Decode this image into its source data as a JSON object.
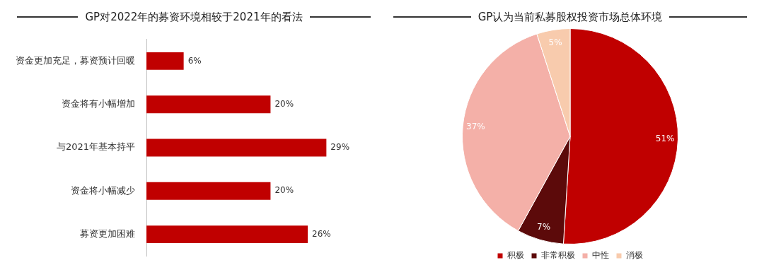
{
  "chart_data": [
    {
      "type": "bar",
      "title": "GP对2022年的募资环境相较于2021年的看法",
      "orientation": "horizontal",
      "categories": [
        "资金更加充足，募资预计回暖",
        "资金将有小幅增加",
        "与2021年基本持平",
        "资金将小幅减少",
        "募资更加困难"
      ],
      "values": [
        6,
        20,
        29,
        20,
        26
      ],
      "value_labels": [
        "6%",
        "20%",
        "29%",
        "20%",
        "26%"
      ],
      "color": "#c00000",
      "legend": false
    },
    {
      "type": "pie",
      "title": "GP认为当前私募股权投资市场总体环境",
      "categories": [
        "积极",
        "非常积极",
        "中性",
        "消极"
      ],
      "values": [
        51,
        7,
        37,
        5
      ],
      "value_labels": [
        "51%",
        "7%",
        "37%",
        "5%"
      ],
      "colors": [
        "#c00000",
        "#5c0a0a",
        "#f4b0a8",
        "#f8cbad"
      ],
      "legend": "bottom"
    }
  ]
}
